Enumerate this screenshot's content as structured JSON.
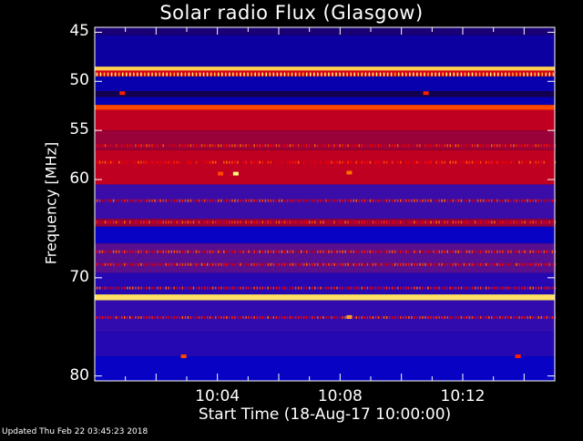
{
  "chart_data": {
    "type": "heatmap",
    "title": "Solar radio Flux (Glasgow)",
    "xlabel": "Start Time (18-Aug-17 10:00:00)",
    "ylabel": "Frequency [MHz]",
    "ylim": [
      44.5,
      80.5
    ],
    "xlim_minutes": [
      0,
      15
    ],
    "yticks": [
      45,
      50,
      55,
      60,
      70,
      80
    ],
    "xticks": [
      {
        "minute": 4,
        "label": "10:04"
      },
      {
        "minute": 8,
        "label": "10:08"
      },
      {
        "minute": 12,
        "label": "10:12"
      }
    ],
    "colormap": [
      "#000000",
      "#1a0070",
      "#0000c8",
      "#4a10a0",
      "#a00030",
      "#ff0000",
      "#ff7700",
      "#ffff80"
    ],
    "frequency_bands": [
      {
        "mhz": [
          44.5,
          45.3
        ],
        "level": 0.15
      },
      {
        "mhz": [
          45.3,
          48.5
        ],
        "level": 0.22
      },
      {
        "mhz": [
          48.5,
          48.9
        ],
        "level": 0.95
      },
      {
        "mhz": [
          48.9,
          49.5
        ],
        "level": 0.65
      },
      {
        "mhz": [
          49.5,
          51.0
        ],
        "level": 0.24
      },
      {
        "mhz": [
          51.0,
          51.6
        ],
        "level": 0.1
      },
      {
        "mhz": [
          51.6,
          52.4
        ],
        "level": 0.25
      },
      {
        "mhz": [
          52.4,
          52.9
        ],
        "level": 0.8
      },
      {
        "mhz": [
          52.9,
          55.0
        ],
        "level": 0.62
      },
      {
        "mhz": [
          55.0,
          57.0
        ],
        "level": 0.56
      },
      {
        "mhz": [
          57.0,
          60.5
        ],
        "level": 0.62
      },
      {
        "mhz": [
          60.5,
          64.0
        ],
        "level": 0.4
      },
      {
        "mhz": [
          64.0,
          64.8
        ],
        "level": 0.55
      },
      {
        "mhz": [
          64.8,
          66.5
        ],
        "level": 0.3
      },
      {
        "mhz": [
          66.5,
          69.5
        ],
        "level": 0.45
      },
      {
        "mhz": [
          69.5,
          71.7
        ],
        "level": 0.36
      },
      {
        "mhz": [
          71.7,
          72.3
        ],
        "level": 0.97
      },
      {
        "mhz": [
          72.3,
          75.5
        ],
        "level": 0.38
      },
      {
        "mhz": [
          75.5,
          78.0
        ],
        "level": 0.36
      },
      {
        "mhz": [
          78.0,
          80.5
        ],
        "level": 0.3
      }
    ],
    "bursts": [
      {
        "minute": 4.6,
        "mhz": 59.4,
        "level": 1.0
      },
      {
        "minute": 4.1,
        "mhz": 59.4,
        "level": 0.8
      },
      {
        "minute": 8.3,
        "mhz": 59.3,
        "level": 0.85
      },
      {
        "minute": 8.3,
        "mhz": 74.0,
        "level": 0.9
      },
      {
        "minute": 2.9,
        "mhz": 78.0,
        "level": 0.8
      },
      {
        "minute": 13.8,
        "mhz": 78.0,
        "level": 0.75
      },
      {
        "minute": 0.9,
        "mhz": 51.2,
        "level": 0.75
      },
      {
        "minute": 10.8,
        "mhz": 51.2,
        "level": 0.75
      }
    ]
  },
  "footer": "Updated Thu Feb 22 03:45:23 2018"
}
